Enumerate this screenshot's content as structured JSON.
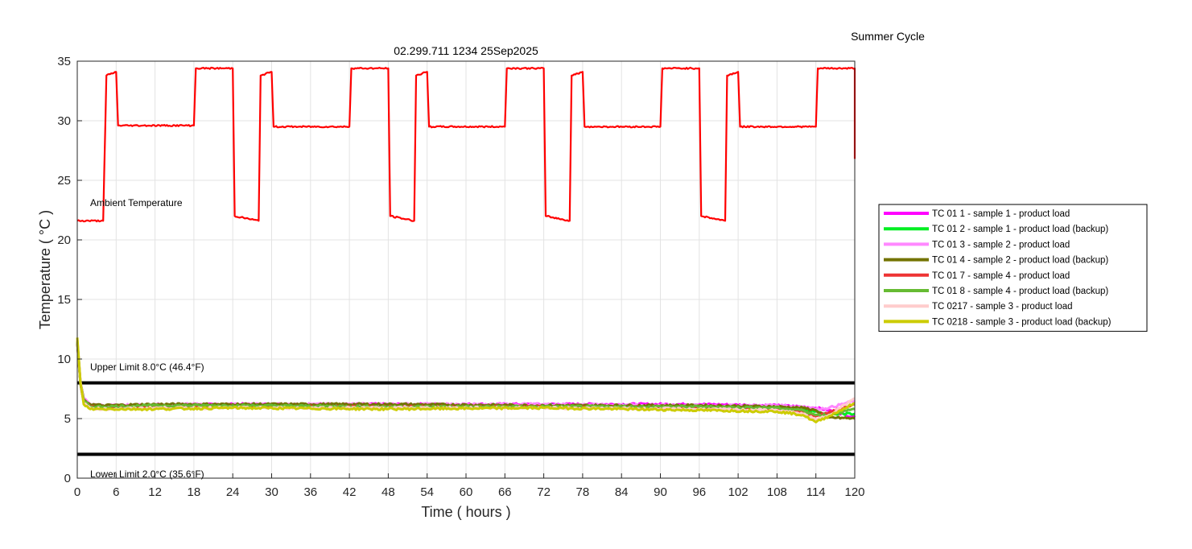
{
  "chart_data": {
    "type": "line",
    "title": "02.299.711 1234 25Sep2025",
    "subtitle": "Summer Cycle",
    "xlabel": "Time ( hours )",
    "ylabel": "Temperature ( °C )",
    "xlim": [
      0,
      120
    ],
    "ylim": [
      0,
      35
    ],
    "xticks": [
      "0",
      "6",
      "12",
      "18",
      "24",
      "30",
      "36",
      "42",
      "48",
      "54",
      "60",
      "66",
      "72",
      "78",
      "84",
      "90",
      "96",
      "102",
      "108",
      "114",
      "120"
    ],
    "yticks": [
      "0",
      "5",
      "10",
      "15",
      "20",
      "25",
      "30",
      "35"
    ],
    "grid": true,
    "legend_position": "right",
    "annotations": {
      "ambient": "Ambient Temperature",
      "upper": "Upper Limit 8.0°C (46.4°F)",
      "lower": "Lower Limit 2.0°C (35.6°F)"
    },
    "limits": [
      {
        "name": "Upper Limit",
        "y": 8.0,
        "color": "#000000"
      },
      {
        "name": "Lower Limit",
        "y": 2.0,
        "color": "#000000"
      }
    ],
    "ambient_series": {
      "color": "#ff0000",
      "x": [
        0,
        4,
        4.5,
        6,
        6.3,
        18,
        18.3,
        24,
        24.3,
        28,
        28.3,
        30,
        30.3,
        42,
        42.3,
        48,
        48.3,
        52,
        52.3,
        54,
        54.3,
        66,
        66.3,
        72,
        72.3,
        76,
        76.3,
        78,
        78.3,
        90,
        90.3,
        96,
        96.3,
        100,
        100.3,
        102,
        102.3,
        114,
        114.3,
        120,
        120
      ],
      "y": [
        21.6,
        21.6,
        33.8,
        34.1,
        29.6,
        29.6,
        34.4,
        34.4,
        22.0,
        21.6,
        33.8,
        34.1,
        29.5,
        29.5,
        34.4,
        34.4,
        22.0,
        21.6,
        33.8,
        34.1,
        29.5,
        29.5,
        34.4,
        34.4,
        22.0,
        21.6,
        33.8,
        34.1,
        29.5,
        29.5,
        34.4,
        34.4,
        22.0,
        21.6,
        33.8,
        34.1,
        29.5,
        29.5,
        34.4,
        34.4,
        26.8
      ]
    },
    "series": [
      {
        "name": "TC 01 1 - sample 1 - product load",
        "color": "#ff00ff",
        "x": [
          0,
          0.5,
          1,
          2,
          4,
          12,
          24,
          48,
          72,
          96,
          108,
          112,
          114,
          116,
          120
        ],
        "y": [
          11.5,
          8.0,
          6.6,
          6.1,
          6.0,
          6.1,
          6.2,
          6.2,
          6.2,
          6.2,
          6.1,
          6.0,
          5.9,
          5.7,
          5.1
        ]
      },
      {
        "name": "TC 01 2 - sample 1 - product load (backup)",
        "color": "#00ee22",
        "x": [
          0,
          0.5,
          1,
          2,
          4,
          12,
          24,
          48,
          72,
          96,
          108,
          112,
          114,
          116,
          120
        ],
        "y": [
          11.4,
          8.0,
          6.5,
          6.0,
          6.0,
          6.0,
          6.1,
          6.1,
          6.1,
          6.0,
          5.9,
          5.8,
          5.6,
          5.4,
          5.4
        ]
      },
      {
        "name": "TC 01 3 - sample 2 - product load",
        "color": "#ff88ff",
        "x": [
          0,
          0.5,
          1,
          2,
          4,
          12,
          24,
          48,
          72,
          96,
          108,
          112,
          114,
          116,
          120
        ],
        "y": [
          11.6,
          8.1,
          6.7,
          6.2,
          6.1,
          6.2,
          6.2,
          6.2,
          6.2,
          6.1,
          6.1,
          6.0,
          5.8,
          5.9,
          6.5
        ]
      },
      {
        "name": "TC 01 4 - sample 2 - product load (backup)",
        "color": "#737300",
        "x": [
          0,
          0.5,
          1,
          2,
          4,
          12,
          24,
          48,
          72,
          96,
          108,
          112,
          114,
          116,
          120
        ],
        "y": [
          11.5,
          8.0,
          6.6,
          6.2,
          6.1,
          6.2,
          6.2,
          6.2,
          6.1,
          6.1,
          6.0,
          5.9,
          5.7,
          5.1,
          5.0
        ]
      },
      {
        "name": "TC 01 7 - sample 4 - product load",
        "color": "#ee3333",
        "x": [
          0,
          0.5,
          1,
          2,
          4,
          12,
          24,
          48,
          72,
          96,
          108,
          112,
          114,
          116,
          120
        ],
        "y": [
          11.3,
          7.9,
          6.4,
          6.0,
          5.9,
          6.0,
          6.0,
          6.0,
          6.0,
          5.9,
          5.8,
          5.6,
          5.2,
          5.5,
          6.2
        ]
      },
      {
        "name": "TC 01 8 - sample 4 - product load (backup)",
        "color": "#66bb33",
        "x": [
          0,
          0.5,
          1,
          2,
          4,
          12,
          24,
          48,
          72,
          96,
          108,
          112,
          114,
          116,
          120
        ],
        "y": [
          11.4,
          7.9,
          6.5,
          6.0,
          6.0,
          6.1,
          6.1,
          6.0,
          6.0,
          6.0,
          5.9,
          5.7,
          5.3,
          5.3,
          5.8
        ]
      },
      {
        "name": "TC 0217 - sample 3 - product load",
        "color": "#ffcccc",
        "x": [
          0,
          0.5,
          1,
          2,
          4,
          12,
          24,
          48,
          72,
          96,
          108,
          112,
          114,
          116,
          120
        ],
        "y": [
          11.7,
          8.1,
          6.3,
          5.9,
          5.8,
          5.9,
          5.9,
          5.9,
          5.9,
          5.8,
          5.7,
          5.4,
          4.9,
          5.3,
          6.7
        ]
      },
      {
        "name": "TC 0218 - sample 3 - product load (backup)",
        "color": "#cccc00",
        "x": [
          0,
          0.5,
          1,
          2,
          4,
          12,
          24,
          48,
          72,
          96,
          108,
          112,
          114,
          116,
          120
        ],
        "y": [
          11.8,
          8.0,
          6.2,
          5.8,
          5.8,
          5.8,
          5.9,
          5.8,
          5.9,
          5.7,
          5.6,
          5.3,
          4.7,
          5.2,
          6.3
        ]
      }
    ]
  }
}
